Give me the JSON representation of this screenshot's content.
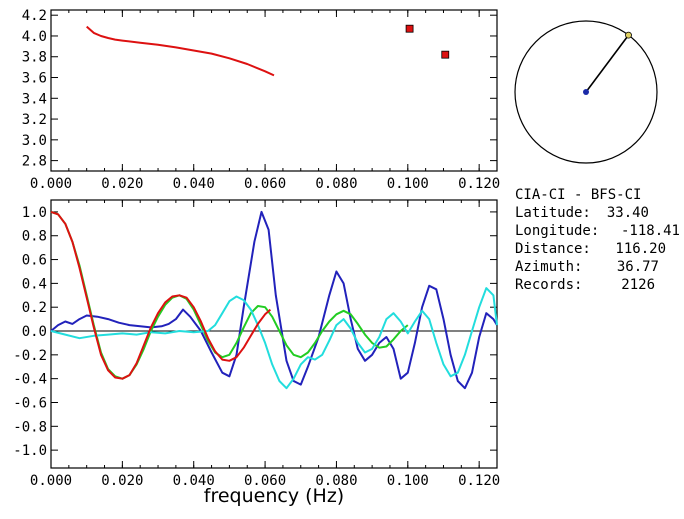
{
  "info": {
    "station_pair": "CIA-CI - BFS-CI",
    "rows": [
      {
        "label": "Latitude:",
        "value": "33.40"
      },
      {
        "label": "Longitude:",
        "value": "-118.41"
      },
      {
        "label": "Distance:",
        "value": "116.20"
      },
      {
        "label": "Azimuth:",
        "value": "36.77"
      },
      {
        "label": "Records:",
        "value": "2126"
      }
    ]
  },
  "azimuth_map": {
    "azimuth_deg": 36.77,
    "colors": {
      "circle": "#000000",
      "line": "#000000",
      "center": "#1b2aa8",
      "end": "#e0d060"
    }
  },
  "chart_data": [
    {
      "type": "line",
      "xlim": [
        0.0,
        0.125
      ],
      "ylim": [
        2.7,
        4.25
      ],
      "x_ticks": [
        "0.000",
        "0.020",
        "0.040",
        "0.060",
        "0.080",
        "0.100",
        "0.120"
      ],
      "y_ticks": [
        "2.8",
        "3.0",
        "3.2",
        "3.4",
        "3.6",
        "3.8",
        "4.0",
        "4.2"
      ],
      "series": [
        {
          "color": "#dd1111",
          "x": [
            0.01,
            0.012,
            0.014,
            0.016,
            0.018,
            0.02,
            0.025,
            0.03,
            0.035,
            0.04,
            0.045,
            0.05,
            0.055,
            0.06,
            0.0625
          ],
          "y": [
            4.09,
            4.03,
            4.0,
            3.98,
            3.965,
            3.955,
            3.935,
            3.915,
            3.89,
            3.86,
            3.83,
            3.785,
            3.73,
            3.66,
            3.62
          ]
        }
      ],
      "markers": {
        "color": "#dd1111",
        "x": [
          0.1005,
          0.1105
        ],
        "y": [
          4.07,
          3.82
        ]
      }
    },
    {
      "type": "line",
      "xlim": [
        0.0,
        0.125
      ],
      "ylim": [
        -1.15,
        1.1
      ],
      "zero_line": true,
      "x_ticks": [
        "0.000",
        "0.020",
        "0.040",
        "0.060",
        "0.080",
        "0.100",
        "0.120"
      ],
      "y_ticks": [
        "1.0",
        "0.8",
        "0.6",
        "0.4",
        "0.2",
        "0.0",
        "-0.2",
        "-0.4",
        "-0.6",
        "-0.8",
        "-1.0"
      ],
      "xlabel": "frequency (Hz)",
      "series": [
        {
          "color": "#2222bb",
          "x": [
            0.0,
            0.002,
            0.004,
            0.006,
            0.008,
            0.01,
            0.013,
            0.016,
            0.019,
            0.022,
            0.025,
            0.028,
            0.031,
            0.033,
            0.035,
            0.037,
            0.039,
            0.042,
            0.045,
            0.048,
            0.05,
            0.052,
            0.054,
            0.057,
            0.059,
            0.061,
            0.063,
            0.066,
            0.068,
            0.07,
            0.072,
            0.075,
            0.078,
            0.08,
            0.082,
            0.084,
            0.086,
            0.088,
            0.09,
            0.092,
            0.094,
            0.096,
            0.098,
            0.1,
            0.102,
            0.104,
            0.106,
            0.108,
            0.11,
            0.112,
            0.114,
            0.116,
            0.118,
            0.12,
            0.122,
            0.124,
            0.125
          ],
          "y": [
            0.0,
            0.05,
            0.08,
            0.06,
            0.1,
            0.13,
            0.12,
            0.1,
            0.07,
            0.05,
            0.04,
            0.03,
            0.04,
            0.06,
            0.1,
            0.18,
            0.12,
            0.0,
            -0.18,
            -0.35,
            -0.38,
            -0.2,
            0.2,
            0.75,
            1.0,
            0.85,
            0.3,
            -0.25,
            -0.42,
            -0.45,
            -0.3,
            -0.05,
            0.3,
            0.5,
            0.4,
            0.1,
            -0.15,
            -0.25,
            -0.2,
            -0.1,
            -0.05,
            -0.15,
            -0.4,
            -0.35,
            -0.1,
            0.2,
            0.38,
            0.35,
            0.1,
            -0.2,
            -0.42,
            -0.48,
            -0.35,
            -0.05,
            0.15,
            0.1,
            0.05
          ]
        },
        {
          "color": "#22cc22",
          "x": [
            0.0,
            0.002,
            0.004,
            0.006,
            0.008,
            0.01,
            0.012,
            0.014,
            0.016,
            0.018,
            0.02,
            0.022,
            0.024,
            0.026,
            0.028,
            0.03,
            0.032,
            0.034,
            0.036,
            0.038,
            0.04,
            0.042,
            0.044,
            0.046,
            0.048,
            0.05,
            0.052,
            0.054,
            0.056,
            0.058,
            0.06,
            0.062,
            0.064,
            0.066,
            0.068,
            0.07,
            0.072,
            0.074,
            0.076,
            0.078,
            0.08,
            0.082,
            0.084,
            0.086,
            0.088,
            0.09,
            0.092,
            0.094,
            0.096,
            0.098,
            0.1
          ],
          "y": [
            1.0,
            0.98,
            0.9,
            0.75,
            0.55,
            0.3,
            0.05,
            -0.18,
            -0.32,
            -0.38,
            -0.4,
            -0.37,
            -0.28,
            -0.15,
            0.0,
            0.12,
            0.22,
            0.28,
            0.3,
            0.27,
            0.18,
            0.05,
            -0.08,
            -0.18,
            -0.22,
            -0.2,
            -0.1,
            0.03,
            0.15,
            0.21,
            0.2,
            0.12,
            0.0,
            -0.12,
            -0.2,
            -0.22,
            -0.18,
            -0.1,
            0.0,
            0.08,
            0.14,
            0.17,
            0.14,
            0.06,
            -0.03,
            -0.1,
            -0.14,
            -0.13,
            -0.07,
            0.0,
            0.05
          ]
        },
        {
          "color": "#22dddd",
          "x": [
            0.0,
            0.004,
            0.008,
            0.012,
            0.016,
            0.02,
            0.024,
            0.028,
            0.032,
            0.036,
            0.04,
            0.044,
            0.046,
            0.048,
            0.05,
            0.052,
            0.054,
            0.056,
            0.058,
            0.06,
            0.062,
            0.064,
            0.066,
            0.068,
            0.07,
            0.072,
            0.074,
            0.076,
            0.078,
            0.08,
            0.082,
            0.084,
            0.086,
            0.088,
            0.09,
            0.092,
            0.094,
            0.096,
            0.098,
            0.1,
            0.102,
            0.104,
            0.106,
            0.108,
            0.11,
            0.112,
            0.114,
            0.116,
            0.118,
            0.12,
            0.122,
            0.124,
            0.125
          ],
          "y": [
            0.0,
            -0.03,
            -0.06,
            -0.04,
            -0.03,
            -0.02,
            -0.03,
            -0.01,
            -0.02,
            0.0,
            -0.01,
            0.0,
            0.05,
            0.15,
            0.25,
            0.29,
            0.26,
            0.18,
            0.05,
            -0.1,
            -0.28,
            -0.42,
            -0.48,
            -0.4,
            -0.28,
            -0.22,
            -0.24,
            -0.2,
            -0.08,
            0.05,
            0.1,
            0.02,
            -0.1,
            -0.18,
            -0.15,
            -0.05,
            0.1,
            0.15,
            0.08,
            -0.02,
            0.08,
            0.17,
            0.1,
            -0.1,
            -0.28,
            -0.38,
            -0.35,
            -0.2,
            0.0,
            0.2,
            0.36,
            0.3,
            0.05
          ]
        },
        {
          "color": "#dd1111",
          "x": [
            0.0,
            0.002,
            0.004,
            0.006,
            0.008,
            0.01,
            0.012,
            0.014,
            0.016,
            0.018,
            0.02,
            0.022,
            0.024,
            0.026,
            0.028,
            0.03,
            0.032,
            0.034,
            0.036,
            0.038,
            0.04,
            0.042,
            0.044,
            0.046,
            0.048,
            0.05,
            0.052,
            0.054,
            0.056,
            0.058,
            0.06,
            0.0615
          ],
          "y": [
            1.0,
            0.98,
            0.9,
            0.75,
            0.53,
            0.28,
            0.03,
            -0.2,
            -0.33,
            -0.39,
            -0.4,
            -0.37,
            -0.27,
            -0.12,
            0.03,
            0.15,
            0.24,
            0.29,
            0.3,
            0.28,
            0.2,
            0.08,
            -0.06,
            -0.17,
            -0.24,
            -0.25,
            -0.22,
            -0.14,
            -0.04,
            0.06,
            0.14,
            0.18
          ]
        }
      ]
    }
  ]
}
